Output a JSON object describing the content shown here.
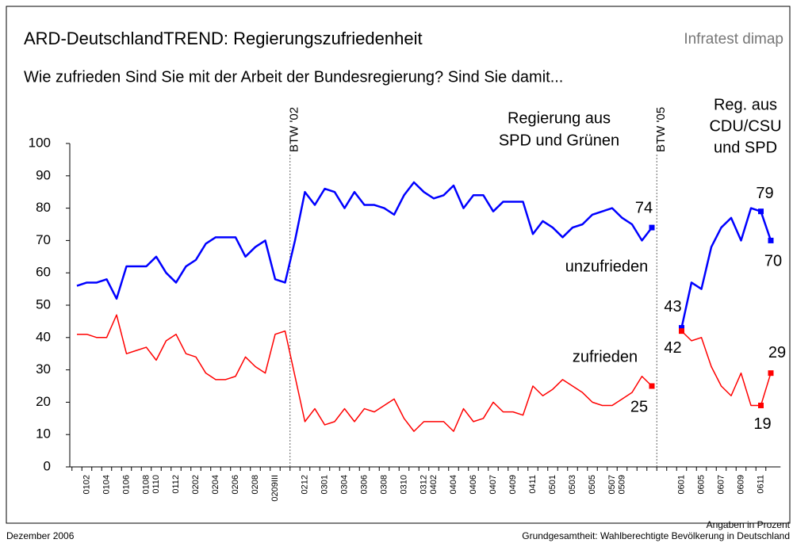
{
  "chart_data": {
    "type": "line",
    "title": "ARD-DeutschlandTREND: Regierungszufriedenheit",
    "source": "Infratest dimap",
    "subtitle": "Wie zufrieden Sind Sie mit der Arbeit der Bundesregierung? Sind Sie damit...",
    "footer_left": "Dezember 2006",
    "footer_right": [
      "Angaben in Prozent",
      "Grundgesamtheit: Wahlberechtigte Bevölkerung in Deutschland"
    ],
    "annotations": [
      {
        "text": [
          "Regierung aus",
          "SPD und Grünen"
        ]
      },
      {
        "text": [
          "Reg. aus",
          "CDU/CSU",
          "und SPD"
        ]
      }
    ],
    "events": [
      {
        "label": "BTW '02",
        "after": 21
      },
      {
        "label": "BTW '05",
        "after": 58
      }
    ],
    "categories": [
      null,
      "0102",
      null,
      "0104",
      null,
      "0106",
      null,
      "0108",
      "0110",
      null,
      "0112",
      null,
      "0202",
      null,
      "0204",
      null,
      "0206",
      null,
      "0208",
      null,
      "0209III",
      null,
      null,
      "0212",
      null,
      "0301",
      null,
      "0304",
      null,
      "0306",
      null,
      "0308",
      null,
      "0310",
      null,
      "0312",
      "0402",
      null,
      "0404",
      null,
      "0406",
      null,
      "0407",
      null,
      "0409",
      null,
      "0411",
      null,
      "0501",
      null,
      "0503",
      null,
      "0505",
      null,
      "0507",
      "0509",
      null,
      null,
      null,
      null,
      null,
      "0601",
      null,
      "0605",
      null,
      "0607",
      null,
      "0609",
      null,
      "0611",
      null
    ],
    "series": [
      {
        "name": "unzufrieden",
        "color": "#0000ff",
        "labeled": [
          58,
          61,
          69,
          70
        ],
        "values": [
          56,
          57,
          57,
          58,
          52,
          62,
          62,
          62,
          65,
          60,
          57,
          62,
          64,
          69,
          71,
          71,
          71,
          65,
          68,
          70,
          58,
          57,
          70,
          85,
          81,
          86,
          85,
          80,
          85,
          81,
          81,
          80,
          78,
          84,
          88,
          85,
          83,
          84,
          87,
          80,
          84,
          84,
          79,
          82,
          82,
          82,
          72,
          76,
          74,
          71,
          74,
          75,
          78,
          79,
          80,
          77,
          75,
          70,
          74,
          null,
          null,
          43,
          57,
          55,
          68,
          74,
          77,
          70,
          80,
          79,
          70
        ]
      },
      {
        "name": "zufrieden",
        "color": "#ff0000",
        "labeled": [
          58,
          61,
          69,
          70
        ],
        "values": [
          41,
          41,
          40,
          40,
          47,
          35,
          36,
          37,
          33,
          39,
          41,
          35,
          34,
          29,
          27,
          27,
          28,
          34,
          31,
          29,
          41,
          42,
          28,
          14,
          18,
          13,
          14,
          18,
          14,
          18,
          17,
          19,
          21,
          15,
          11,
          14,
          14,
          14,
          11,
          18,
          14,
          15,
          20,
          17,
          17,
          16,
          25,
          22,
          24,
          27,
          25,
          23,
          20,
          19,
          19,
          21,
          23,
          28,
          25,
          null,
          null,
          42,
          39,
          40,
          31,
          25,
          22,
          29,
          19,
          19,
          29
        ]
      }
    ],
    "ylim": [
      0,
      100
    ],
    "yticks": [
      0,
      10,
      20,
      30,
      40,
      50,
      60,
      70,
      80,
      90,
      100
    ],
    "grid": false
  }
}
